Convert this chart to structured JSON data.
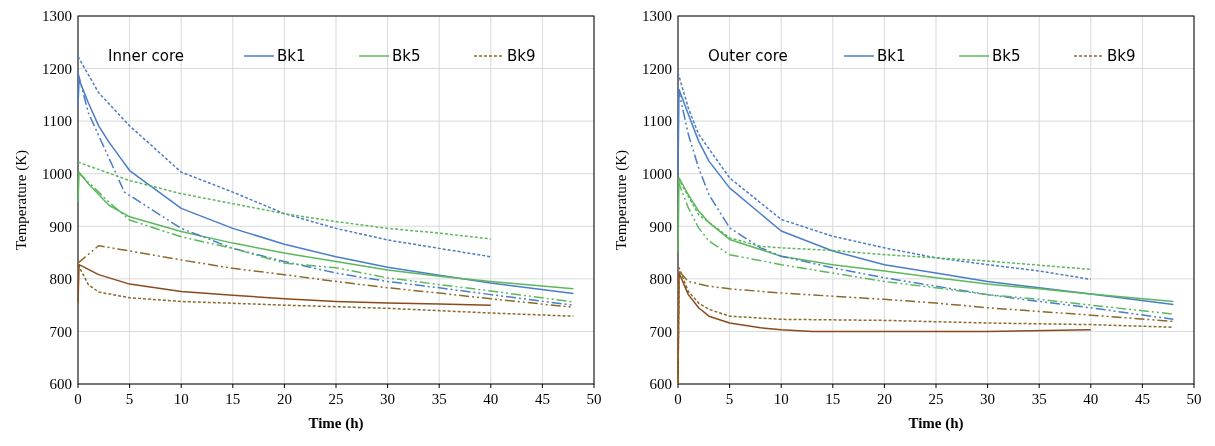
{
  "chart_data": [
    {
      "type": "line",
      "title": "Inner core",
      "xlabel": "Time (h)",
      "ylabel": "Temperature (K)",
      "xlim": [
        0,
        50
      ],
      "xticks": [
        0,
        5,
        10,
        15,
        20,
        25,
        30,
        35,
        40,
        45,
        50
      ],
      "ylim": [
        600,
        1300
      ],
      "yticks": [
        600,
        700,
        800,
        900,
        1000,
        1100,
        1200,
        1300
      ],
      "grid": true,
      "legend": "top right",
      "marker": "none",
      "series": [
        {
          "name": "Bk1",
          "color": "#4a7dc8",
          "line_style": "solid",
          "x": [
            0,
            0.1,
            1,
            2,
            3,
            5,
            10,
            15,
            20,
            25,
            30,
            35,
            40,
            48
          ],
          "values": [
            1129,
            1179,
            1135,
            1091,
            1060,
            1006,
            934,
            896,
            866,
            842,
            822,
            807,
            792,
            772
          ]
        },
        {
          "name": "Bk5",
          "color": "#5cb85c",
          "line_style": "solid",
          "x": [
            0,
            0.1,
            1,
            3,
            5,
            10,
            15,
            20,
            25,
            30,
            35,
            40,
            48
          ],
          "values": [
            946,
            1003,
            981,
            940,
            918,
            890,
            868,
            849,
            833,
            817,
            805,
            795,
            781
          ]
        },
        {
          "name": "Bk9",
          "color": "#8b6a2b",
          "line_style": "dotted",
          "x": [
            0,
            1,
            2,
            5,
            10,
            20,
            30,
            40,
            48
          ],
          "values": [
            827,
            789,
            775,
            764,
            757,
            750,
            744,
            735,
            729
          ]
        },
        {
          "color": "#4a7dc8",
          "line_style": "dotted",
          "x": [
            0,
            2,
            5,
            10,
            15,
            20,
            25,
            30,
            35,
            40
          ],
          "values": [
            1223,
            1154,
            1091,
            1003,
            965,
            924,
            896,
            874,
            858,
            842
          ]
        },
        {
          "color": "#4a7dc8",
          "line_style": "dashed",
          "x": [
            0,
            1,
            4.5,
            10,
            15,
            20,
            25,
            30,
            35,
            40,
            48
          ],
          "values": [
            1192,
            1116,
            965,
            896,
            858,
            833,
            811,
            795,
            783,
            770,
            750
          ]
        },
        {
          "color": "#5cb85c",
          "line_style": "dotted",
          "x": [
            0,
            5,
            10,
            15,
            20,
            25,
            30,
            35,
            40
          ],
          "values": [
            1022,
            987,
            962,
            943,
            924,
            909,
            896,
            887,
            876
          ]
        },
        {
          "color": "#5cb85c",
          "line_style": "dashed",
          "x": [
            0,
            3,
            5,
            10,
            15,
            20,
            25,
            30,
            35,
            40,
            48
          ],
          "values": [
            1003,
            946,
            912,
            880,
            858,
            830,
            821,
            802,
            789,
            777,
            756
          ]
        },
        {
          "color": "#8b4a1e",
          "line_style": "solid",
          "x": [
            0,
            0.1,
            2,
            5,
            10,
            15,
            20,
            25,
            30,
            35,
            40
          ],
          "values": [
            755,
            827,
            808,
            790,
            776,
            769,
            762,
            757,
            754,
            752,
            750
          ]
        },
        {
          "color": "#8b6a2b",
          "line_style": "dashed",
          "x": [
            0,
            2,
            5,
            10,
            15,
            20,
            25,
            30,
            35,
            40,
            48
          ],
          "values": [
            830,
            863,
            853,
            836,
            820,
            808,
            795,
            783,
            773,
            762,
            746
          ]
        }
      ]
    },
    {
      "type": "line",
      "title": "Outer core",
      "xlabel": "Time (h)",
      "ylabel": "Temperature (K)",
      "xlim": [
        0,
        50
      ],
      "xticks": [
        0,
        5,
        10,
        15,
        20,
        25,
        30,
        35,
        40,
        45,
        50
      ],
      "ylim": [
        600,
        1300
      ],
      "yticks": [
        600,
        700,
        800,
        900,
        1000,
        1100,
        1200,
        1300
      ],
      "grid": true,
      "legend": "top right",
      "marker": "none",
      "series": [
        {
          "name": "Bk1",
          "color": "#4a7dc8",
          "line_style": "solid",
          "x": [
            0,
            0.1,
            1,
            2,
            3,
            5,
            10,
            15,
            20,
            25,
            30,
            35,
            40,
            48
          ],
          "values": [
            1000,
            1160,
            1113,
            1062,
            1024,
            973,
            891,
            853,
            827,
            811,
            795,
            783,
            771,
            751
          ]
        },
        {
          "name": "Bk5",
          "color": "#5cb85c",
          "line_style": "solid",
          "x": [
            0,
            0.1,
            1,
            2,
            3,
            5,
            10,
            15,
            20,
            25,
            30,
            35,
            40,
            48
          ],
          "values": [
            850,
            992,
            960,
            929,
            907,
            875,
            843,
            827,
            815,
            802,
            790,
            781,
            771,
            757
          ]
        },
        {
          "name": "Bk9",
          "color": "#8b6a2b",
          "line_style": "dotted",
          "x": [
            0,
            0.1,
            1,
            2,
            3,
            5,
            10,
            20,
            30,
            40,
            48
          ],
          "values": [
            600,
            821,
            776,
            754,
            742,
            729,
            723,
            721,
            716,
            713,
            708
          ]
        },
        {
          "color": "#4a7dc8",
          "line_style": "dotted",
          "x": [
            0,
            1,
            2,
            5,
            10,
            15,
            20,
            25,
            30,
            35,
            40
          ],
          "values": [
            1192,
            1125,
            1075,
            992,
            913,
            881,
            859,
            840,
            827,
            815,
            799
          ]
        },
        {
          "color": "#4a7dc8",
          "line_style": "dashed",
          "x": [
            0,
            1,
            2,
            3,
            5,
            8,
            10,
            15,
            20,
            25,
            30,
            35,
            40,
            48
          ],
          "values": [
            1164,
            1075,
            1011,
            960,
            897,
            859,
            843,
            821,
            802,
            786,
            770,
            757,
            745,
            723
          ]
        },
        {
          "color": "#5cb85c",
          "line_style": "dotted",
          "x": [
            0,
            2,
            5,
            8,
            10,
            15,
            20,
            25,
            30,
            35,
            40
          ],
          "values": [
            992,
            922,
            878,
            862,
            859,
            854,
            846,
            840,
            834,
            826,
            818
          ]
        },
        {
          "color": "#5cb85c",
          "line_style": "dashed",
          "x": [
            0,
            1,
            2,
            3,
            5,
            10,
            15,
            20,
            25,
            30,
            35,
            40,
            48
          ],
          "values": [
            986,
            935,
            897,
            872,
            846,
            827,
            811,
            795,
            783,
            770,
            761,
            750,
            733
          ]
        },
        {
          "color": "#8b4a1e",
          "line_style": "solid",
          "x": [
            0,
            0.1,
            1,
            2,
            3,
            5,
            8,
            10,
            13,
            20,
            30,
            40
          ],
          "values": [
            600,
            811,
            770,
            745,
            729,
            716,
            707,
            703,
            700,
            700,
            700,
            703
          ]
        },
        {
          "color": "#8b6a2b",
          "line_style": "dashed",
          "x": [
            0,
            0.1,
            1,
            3,
            5,
            10,
            15,
            20,
            25,
            30,
            35,
            40,
            48
          ],
          "values": [
            600,
            815,
            795,
            786,
            781,
            773,
            767,
            761,
            754,
            745,
            738,
            731,
            719
          ]
        }
      ]
    }
  ]
}
